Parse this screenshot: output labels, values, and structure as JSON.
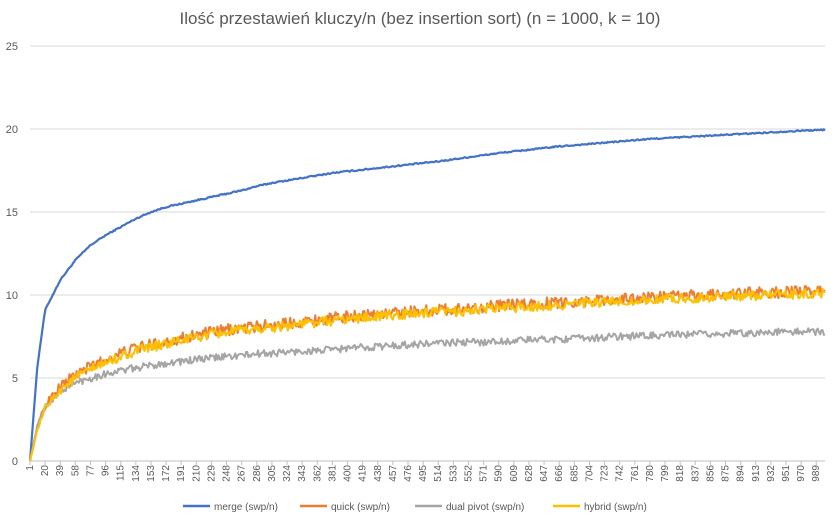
{
  "chart_data": {
    "type": "line",
    "title": "Ilość przestawień kluczy/n (bez insertion sort) (n = 1000, k = 10)",
    "xlabel": "",
    "ylabel": "",
    "ylim": [
      0,
      25
    ],
    "yticks": [
      0,
      5,
      10,
      15,
      20,
      25
    ],
    "xlim": [
      1,
      1000
    ],
    "xticks": [
      1,
      20,
      39,
      58,
      77,
      96,
      115,
      134,
      153,
      172,
      191,
      210,
      229,
      248,
      267,
      286,
      305,
      324,
      343,
      362,
      381,
      400,
      419,
      438,
      457,
      476,
      495,
      514,
      533,
      552,
      571,
      590,
      609,
      628,
      647,
      666,
      685,
      704,
      723,
      742,
      761,
      780,
      799,
      818,
      837,
      856,
      875,
      894,
      913,
      932,
      951,
      970,
      989
    ],
    "grid": true,
    "legend_position": "bottom",
    "series": [
      {
        "name": "merge (swp/n)",
        "color": "#4472C4",
        "x": [
          1,
          10,
          20,
          39,
          58,
          77,
          96,
          115,
          134,
          153,
          172,
          191,
          210,
          229,
          248,
          267,
          286,
          305,
          324,
          343,
          362,
          381,
          400,
          438,
          476,
          514,
          552,
          590,
          628,
          666,
          704,
          742,
          780,
          818,
          856,
          894,
          932,
          970,
          1000
        ],
        "values": [
          0,
          5.6,
          9.1,
          10.9,
          12.1,
          13.0,
          13.6,
          14.1,
          14.6,
          15.0,
          15.3,
          15.5,
          15.7,
          15.9,
          16.1,
          16.3,
          16.55,
          16.75,
          16.9,
          17.05,
          17.2,
          17.35,
          17.45,
          17.65,
          17.85,
          18.05,
          18.3,
          18.55,
          18.75,
          18.95,
          19.1,
          19.25,
          19.4,
          19.5,
          19.6,
          19.7,
          19.8,
          19.9,
          19.95
        ]
      },
      {
        "name": "quick (swp/n)",
        "color": "#ED7D31",
        "x": [
          1,
          10,
          20,
          39,
          58,
          77,
          96,
          115,
          134,
          153,
          172,
          191,
          210,
          229,
          248,
          267,
          286,
          305,
          324,
          343,
          362,
          381,
          400,
          438,
          476,
          514,
          552,
          590,
          628,
          666,
          704,
          742,
          780,
          818,
          856,
          894,
          932,
          970,
          1000
        ],
        "values": [
          0,
          2.0,
          3.4,
          4.5,
          5.2,
          5.7,
          6.1,
          6.5,
          6.8,
          7.0,
          7.2,
          7.4,
          7.6,
          7.75,
          7.9,
          8.0,
          8.1,
          8.2,
          8.3,
          8.4,
          8.5,
          8.6,
          8.7,
          8.85,
          9.0,
          9.1,
          9.2,
          9.35,
          9.45,
          9.55,
          9.65,
          9.75,
          9.85,
          9.95,
          10.0,
          10.1,
          10.15,
          10.2,
          10.25
        ]
      },
      {
        "name": "dual pivot (swp/n)",
        "color": "#A5A5A5",
        "x": [
          1,
          10,
          20,
          39,
          58,
          77,
          96,
          115,
          134,
          153,
          172,
          191,
          210,
          229,
          248,
          267,
          286,
          305,
          324,
          343,
          362,
          381,
          400,
          438,
          476,
          514,
          552,
          590,
          628,
          666,
          704,
          742,
          780,
          818,
          856,
          894,
          932,
          970,
          1000
        ],
        "values": [
          0,
          2.1,
          3.2,
          4.2,
          4.7,
          5.0,
          5.25,
          5.45,
          5.6,
          5.75,
          5.9,
          6.0,
          6.1,
          6.2,
          6.3,
          6.35,
          6.45,
          6.5,
          6.55,
          6.6,
          6.65,
          6.7,
          6.8,
          6.9,
          7.0,
          7.1,
          7.15,
          7.2,
          7.3,
          7.35,
          7.4,
          7.5,
          7.55,
          7.6,
          7.65,
          7.7,
          7.75,
          7.8,
          7.8
        ]
      },
      {
        "name": "hybrid (swp/n)",
        "color": "#FFC000",
        "x": [
          1,
          10,
          20,
          39,
          58,
          77,
          96,
          115,
          134,
          153,
          172,
          191,
          210,
          229,
          248,
          267,
          286,
          305,
          324,
          343,
          362,
          381,
          400,
          438,
          476,
          514,
          552,
          590,
          628,
          666,
          704,
          742,
          780,
          818,
          856,
          894,
          932,
          970,
          1000
        ],
        "values": [
          0,
          1.8,
          3.2,
          4.3,
          5.0,
          5.5,
          5.9,
          6.3,
          6.6,
          6.85,
          7.05,
          7.25,
          7.45,
          7.6,
          7.75,
          7.85,
          7.95,
          8.05,
          8.15,
          8.25,
          8.35,
          8.45,
          8.55,
          8.7,
          8.85,
          8.95,
          9.05,
          9.2,
          9.3,
          9.4,
          9.5,
          9.6,
          9.7,
          9.8,
          9.85,
          9.95,
          10.0,
          10.05,
          10.1
        ]
      }
    ]
  }
}
